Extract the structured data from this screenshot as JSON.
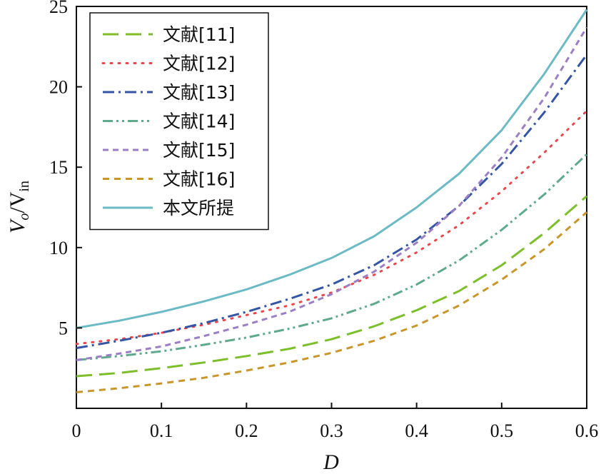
{
  "chart_data": {
    "type": "line",
    "xlabel": "D",
    "ylabel": "Vo/Vin",
    "xlim": [
      0,
      0.6
    ],
    "ylim": [
      0,
      25
    ],
    "xticks": [
      "0",
      "0.1",
      "0.2",
      "0.3",
      "0.4",
      "0.5",
      "0.6"
    ],
    "yticks": [
      "5",
      "10",
      "15",
      "20",
      "25"
    ],
    "grid": false,
    "legend_position": "top-left",
    "x": [
      0,
      0.05,
      0.1,
      0.15,
      0.2,
      0.25,
      0.3,
      0.35,
      0.4,
      0.45,
      0.5,
      0.55,
      0.6
    ],
    "series": [
      {
        "name": "文献[11]",
        "color": "#7cbf2a",
        "dash": "long-dash",
        "values": [
          2.0,
          2.2,
          2.5,
          2.85,
          3.25,
          3.7,
          4.3,
          5.1,
          6.1,
          7.3,
          8.9,
          10.9,
          13.2
        ]
      },
      {
        "name": "文献[12]",
        "color": "#e8474e",
        "dash": "dotted",
        "values": [
          4.0,
          4.3,
          4.7,
          5.2,
          5.8,
          6.4,
          7.2,
          8.3,
          9.7,
          11.4,
          13.5,
          15.9,
          18.5
        ]
      },
      {
        "name": "文献[13]",
        "color": "#3454a4",
        "dash": "dash-dot",
        "values": [
          3.75,
          4.2,
          4.7,
          5.3,
          6.0,
          6.8,
          7.7,
          8.9,
          10.5,
          12.6,
          15.2,
          18.4,
          22.0
        ]
      },
      {
        "name": "文献[14]",
        "color": "#5fa98c",
        "dash": "dash-dot-dot",
        "values": [
          3.0,
          3.25,
          3.55,
          3.95,
          4.4,
          4.95,
          5.6,
          6.5,
          7.7,
          9.2,
          11.1,
          13.3,
          15.8
        ]
      },
      {
        "name": "文献[15]",
        "color": "#9b7fc4",
        "dash": "short-dash",
        "values": [
          3.0,
          3.4,
          3.85,
          4.5,
          5.2,
          6.0,
          7.1,
          8.5,
          10.3,
          12.6,
          15.6,
          19.3,
          23.7
        ]
      },
      {
        "name": "文献[16]",
        "color": "#c9962c",
        "dash": "dash",
        "values": [
          1.0,
          1.25,
          1.55,
          1.9,
          2.35,
          2.85,
          3.45,
          4.2,
          5.15,
          6.4,
          8.0,
          9.9,
          12.2
        ]
      },
      {
        "name": "本文所提",
        "color": "#6bbac4",
        "dash": "solid",
        "values": [
          5.0,
          5.45,
          6.0,
          6.65,
          7.4,
          8.3,
          9.35,
          10.7,
          12.5,
          14.6,
          17.3,
          20.8,
          24.8
        ]
      }
    ]
  }
}
